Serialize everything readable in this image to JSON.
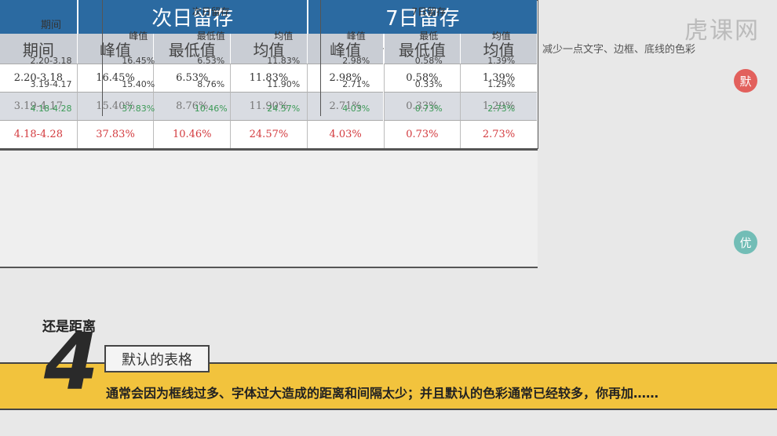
{
  "watermark": "虎课网",
  "note": "改小一点文字的字号，并调整对齐方式；减少一点文字、边框、底线的色彩",
  "table_default": {
    "badge": "默",
    "groups": [
      "次日留存",
      "7日留存"
    ],
    "headers": [
      "期间",
      "峰值",
      "最低值",
      "均值",
      "峰值",
      "最低值",
      "均值"
    ],
    "rows": [
      [
        "2.20-3.18",
        "16.45%",
        "6.53%",
        "11.83%",
        "2.98%",
        "0.58%",
        "1.39%"
      ],
      [
        "3.19-4.17",
        "15.40%",
        "8.76%",
        "11.90%",
        "2.71%",
        "0.33%",
        "1.29%"
      ],
      [
        "4.18-4.28",
        "37.83%",
        "10.46%",
        "24.57%",
        "4.03%",
        "0.73%",
        "2.73%"
      ]
    ]
  },
  "table_optimized": {
    "badge": "优",
    "period_header": "期间",
    "groups": [
      "次日留存",
      "7日留存"
    ],
    "headers": [
      "峰值",
      "最低值",
      "均值",
      "峰值",
      "最低",
      "均值"
    ],
    "rows": [
      [
        "2.20-3.18",
        "16.45%",
        "6.53%",
        "11.83%",
        "2.98%",
        "0.58%",
        "1.39%"
      ],
      [
        "3.19-4.17",
        "15.40%",
        "8.76%",
        "11.90%",
        "2.71%",
        "0.33%",
        "1.29%"
      ],
      [
        "4.18-4.28",
        "37.83%",
        "10.46%",
        "24.57%",
        "4.03%",
        "0.73%",
        "2.73%"
      ]
    ]
  },
  "footer": {
    "section_label": "还是距离",
    "section_number": "4",
    "section_title": "默认的表格",
    "caption": "通常会因为框线过多、字体过大造成的距离和间隔太少；并且默认的色彩通常已经较多，你再加……"
  }
}
